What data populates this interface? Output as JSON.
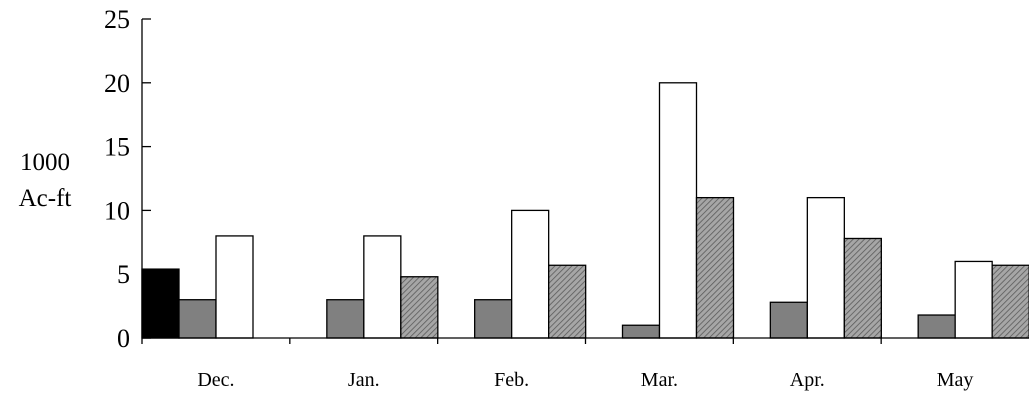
{
  "chart_data": {
    "type": "bar",
    "title": "",
    "xlabel": "",
    "ylabel_line1": "1000",
    "ylabel_line2": "Ac-ft",
    "ylim": [
      0,
      25
    ],
    "yticks": [
      "0",
      "5",
      "10",
      "15",
      "20",
      "25"
    ],
    "ytick_values": [
      0,
      5,
      10,
      15,
      20,
      25
    ],
    "categories": [
      "Dec.",
      "Jan.",
      "Feb.",
      "Mar.",
      "Apr.",
      "May"
    ],
    "series": [
      {
        "values": [
          5.4,
          null,
          null,
          null,
          null,
          null
        ],
        "color": "#000000",
        "pattern": "solid"
      },
      {
        "values": [
          3,
          3,
          3,
          1,
          2.8,
          1.8
        ],
        "color": "#808080",
        "pattern": "solid"
      },
      {
        "values": [
          8,
          8,
          10,
          20,
          11,
          6
        ],
        "color": "#ffffff",
        "pattern": "solid"
      },
      {
        "values": [
          null,
          4.8,
          5.7,
          11,
          7.8,
          5.7
        ],
        "color": "#8c8c8c",
        "pattern": "hatch"
      }
    ],
    "grid": false,
    "legend": "none"
  }
}
